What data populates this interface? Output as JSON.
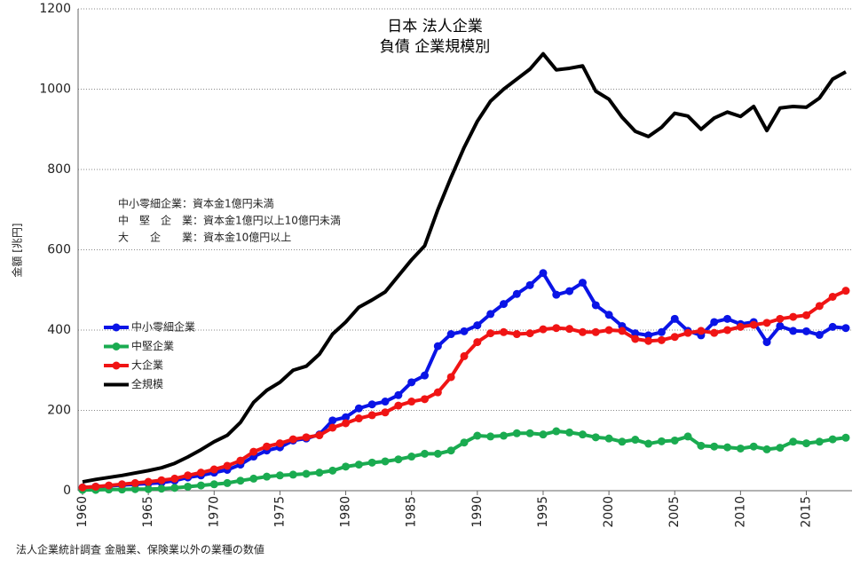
{
  "chart_data": {
    "type": "line",
    "title": [
      "日本 法人企業",
      "負債 企業規模別"
    ],
    "y_label": "金額 [兆円]",
    "annotations": [
      "中小零細企業：資本金1億円未満",
      "中　堅　企　業：資本金1億円以上10億円未満",
      "大　　企　　業：資本金10億円以上"
    ],
    "footnote": "法人企業統計調査 金融業、保険業以外の業種の数値",
    "x": [
      1960,
      1961,
      1962,
      1963,
      1964,
      1965,
      1966,
      1967,
      1968,
      1969,
      1970,
      1971,
      1972,
      1973,
      1974,
      1975,
      1976,
      1977,
      1978,
      1979,
      1980,
      1981,
      1982,
      1983,
      1984,
      1985,
      1986,
      1987,
      1988,
      1989,
      1990,
      1991,
      1992,
      1993,
      1994,
      1995,
      1996,
      1997,
      1998,
      1999,
      2000,
      2001,
      2002,
      2003,
      2004,
      2005,
      2006,
      2007,
      2008,
      2009,
      2010,
      2011,
      2012,
      2013,
      2014,
      2015,
      2016,
      2017,
      2018
    ],
    "xlim": [
      1960,
      2018
    ],
    "xticks": [
      1960,
      1965,
      1970,
      1975,
      1980,
      1985,
      1990,
      1995,
      2000,
      2005,
      2010,
      2015
    ],
    "ylim": [
      0,
      1200
    ],
    "yticks": [
      0,
      200,
      400,
      600,
      800,
      1000,
      1200
    ],
    "grid": true,
    "legend": "left",
    "series": [
      {
        "name": "中小零細企業",
        "color": "#0a14e6",
        "markers": true,
        "values": [
          8,
          10,
          12,
          14,
          16,
          18,
          20,
          25,
          33,
          38,
          45,
          52,
          65,
          85,
          100,
          108,
          125,
          130,
          140,
          175,
          183,
          205,
          215,
          222,
          238,
          270,
          287,
          360,
          390,
          397,
          412,
          440,
          465,
          490,
          512,
          542,
          488,
          497,
          518,
          462,
          438,
          410,
          392,
          387,
          395,
          428,
          398,
          387,
          420,
          428,
          415,
          420,
          370,
          410,
          398,
          397,
          388,
          408,
          405
        ]
      },
      {
        "name": "中堅企業",
        "color": "#1aab50",
        "markers": true,
        "values": [
          2,
          2,
          3,
          3,
          4,
          4,
          5,
          7,
          10,
          13,
          16,
          19,
          25,
          30,
          35,
          38,
          40,
          42,
          45,
          50,
          60,
          65,
          70,
          73,
          78,
          85,
          92,
          92,
          100,
          120,
          137,
          135,
          137,
          143,
          143,
          140,
          148,
          145,
          140,
          133,
          130,
          122,
          127,
          117,
          123,
          125,
          135,
          112,
          110,
          108,
          105,
          110,
          103,
          107,
          122,
          118,
          122,
          128,
          132
        ]
      },
      {
        "name": "大企業",
        "color": "#f01414",
        "markers": true,
        "values": [
          8,
          10,
          13,
          16,
          19,
          22,
          26,
          30,
          38,
          45,
          53,
          62,
          75,
          97,
          110,
          118,
          128,
          133,
          138,
          157,
          168,
          180,
          188,
          195,
          212,
          222,
          228,
          245,
          283,
          335,
          370,
          392,
          395,
          390,
          392,
          402,
          405,
          403,
          395,
          395,
          400,
          398,
          378,
          373,
          375,
          383,
          393,
          398,
          393,
          400,
          408,
          413,
          418,
          428,
          433,
          437,
          460,
          483,
          498
        ]
      },
      {
        "name": "全規模",
        "color": "#000000",
        "markers": false,
        "values": [
          22,
          28,
          33,
          38,
          44,
          50,
          57,
          68,
          84,
          102,
          122,
          138,
          170,
          220,
          250,
          270,
          300,
          310,
          340,
          390,
          420,
          457,
          475,
          495,
          535,
          575,
          610,
          700,
          780,
          855,
          920,
          970,
          1000,
          1025,
          1050,
          1088,
          1048,
          1052,
          1058,
          995,
          975,
          930,
          895,
          882,
          905,
          940,
          933,
          900,
          928,
          943,
          932,
          957,
          897,
          953,
          957,
          955,
          978,
          1025,
          1043
        ]
      }
    ]
  }
}
